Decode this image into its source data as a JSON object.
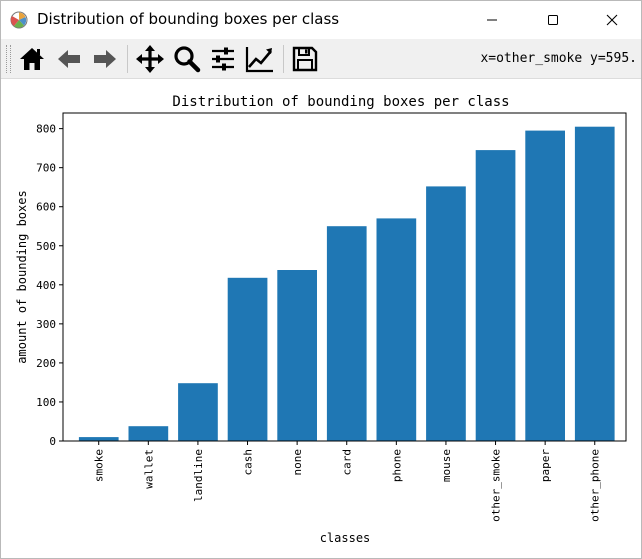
{
  "window": {
    "title": "Distribution of bounding boxes per class"
  },
  "toolbar": {
    "buttons": [
      "home-icon",
      "back-arrow-icon",
      "forward-arrow-icon",
      "pan-move-icon",
      "zoom-magnifier-icon",
      "subplots-sliders-icon",
      "edit-axis-lines-icon",
      "save-floppy-icon"
    ],
    "coords_readout": "x=other_smoke y=595."
  },
  "colors": {
    "bar": "#1f77b4",
    "toolbar_bg": "#f0f0f0"
  },
  "chart_data": {
    "type": "bar",
    "title": "Distribution of bounding boxes per class",
    "xlabel": "classes",
    "ylabel": "amount of bounding boxes",
    "categories": [
      "smoke",
      "wallet",
      "landline",
      "cash",
      "none",
      "card",
      "phone",
      "mouse",
      "other_smoke",
      "paper",
      "other_phone"
    ],
    "values": [
      10,
      38,
      148,
      418,
      438,
      550,
      570,
      652,
      745,
      795,
      805
    ],
    "ylim": [
      0,
      840
    ],
    "yticks": [
      0,
      100,
      200,
      300,
      400,
      500,
      600,
      700,
      800
    ],
    "grid": false,
    "legend": "none"
  }
}
